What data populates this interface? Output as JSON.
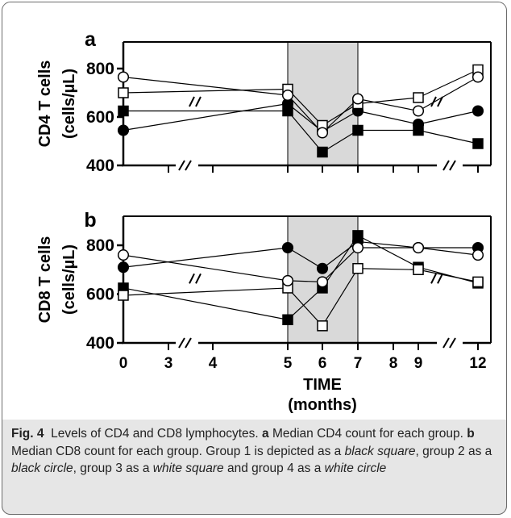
{
  "caption": {
    "fig_label": "Fig. 4",
    "fig_title": "Levels of CD4 and CD8 lymphocytes.",
    "panel_a_label": "a",
    "panel_a_text": "Median CD4 count for each group.",
    "panel_b_label": "b",
    "panel_b_text": "Median CD8 count for each group. Group 1 is depicted as a",
    "g1_shape": "black square",
    "sep_1": ", group 2 as a",
    "g2_shape": "black circle",
    "sep_2": ", group 3 as a",
    "g3_shape": "white square",
    "sep_3": "and group 4 as a",
    "g4_shape": "white circle"
  },
  "colors": {
    "shaded_band": "#d9d9d9",
    "caption_bg": "#e6e6e6",
    "axis": "#000000"
  },
  "chart_data": [
    {
      "panel": "a",
      "type": "line",
      "ylabel": [
        "CD4 T cells",
        "(cells/µL)"
      ],
      "ylim": [
        400,
        850
      ],
      "yticks": [
        400,
        600,
        800
      ],
      "xlim": [
        0,
        12
      ],
      "xticks": [
        0,
        3,
        4,
        5,
        6,
        7,
        8,
        9,
        12
      ],
      "shaded_x": [
        5,
        7
      ],
      "axis_breaks_x": [
        1.5,
        10.75
      ],
      "series": [
        {
          "name": "",
          "marker": "square",
          "fill": "black",
          "x": [
            0,
            5,
            6,
            7,
            9,
            12
          ],
          "y": [
            625,
            625,
            455,
            545,
            545,
            490
          ]
        },
        {
          "name": "",
          "marker": "circle",
          "fill": "black",
          "x": [
            0,
            5,
            6,
            7,
            9,
            12
          ],
          "y": [
            545,
            655,
            540,
            625,
            570,
            625
          ]
        },
        {
          "name": "",
          "marker": "square",
          "fill": "white",
          "x": [
            0,
            5,
            6,
            7,
            9,
            12
          ],
          "y": [
            700,
            715,
            565,
            655,
            680,
            795
          ]
        },
        {
          "name": "",
          "marker": "circle",
          "fill": "white",
          "x": [
            0,
            5,
            6,
            7,
            9,
            12
          ],
          "y": [
            765,
            690,
            535,
            675,
            625,
            765
          ]
        }
      ]
    },
    {
      "panel": "b",
      "type": "line",
      "ylabel": [
        "CD8 T cells",
        "(cells/µL)"
      ],
      "ylim": [
        400,
        850
      ],
      "yticks": [
        400,
        600,
        800
      ],
      "xlim": [
        0,
        12
      ],
      "xticks": [
        0,
        3,
        4,
        5,
        6,
        7,
        8,
        9,
        12
      ],
      "xtick_labels": [
        "0",
        "3",
        "4",
        "5",
        "6",
        "7",
        "8",
        "9",
        "12"
      ],
      "xlabel": [
        "TIME",
        "(months)"
      ],
      "shaded_x": [
        5,
        7
      ],
      "axis_breaks_x": [
        1.5,
        10.75
      ],
      "series": [
        {
          "name": "",
          "marker": "square",
          "fill": "black",
          "x": [
            0,
            5,
            6,
            7,
            9,
            12
          ],
          "y": [
            625,
            495,
            625,
            840,
            710,
            645
          ]
        },
        {
          "name": "",
          "marker": "circle",
          "fill": "black",
          "x": [
            0,
            5,
            6,
            7,
            9,
            12
          ],
          "y": [
            710,
            790,
            705,
            815,
            790,
            790
          ]
        },
        {
          "name": "",
          "marker": "square",
          "fill": "white",
          "x": [
            0,
            5,
            6,
            7,
            9,
            12
          ],
          "y": [
            595,
            625,
            470,
            705,
            700,
            650
          ]
        },
        {
          "name": "",
          "marker": "circle",
          "fill": "white",
          "x": [
            0,
            5,
            6,
            7,
            9,
            12
          ],
          "y": [
            760,
            655,
            650,
            790,
            790,
            760
          ]
        }
      ]
    }
  ]
}
